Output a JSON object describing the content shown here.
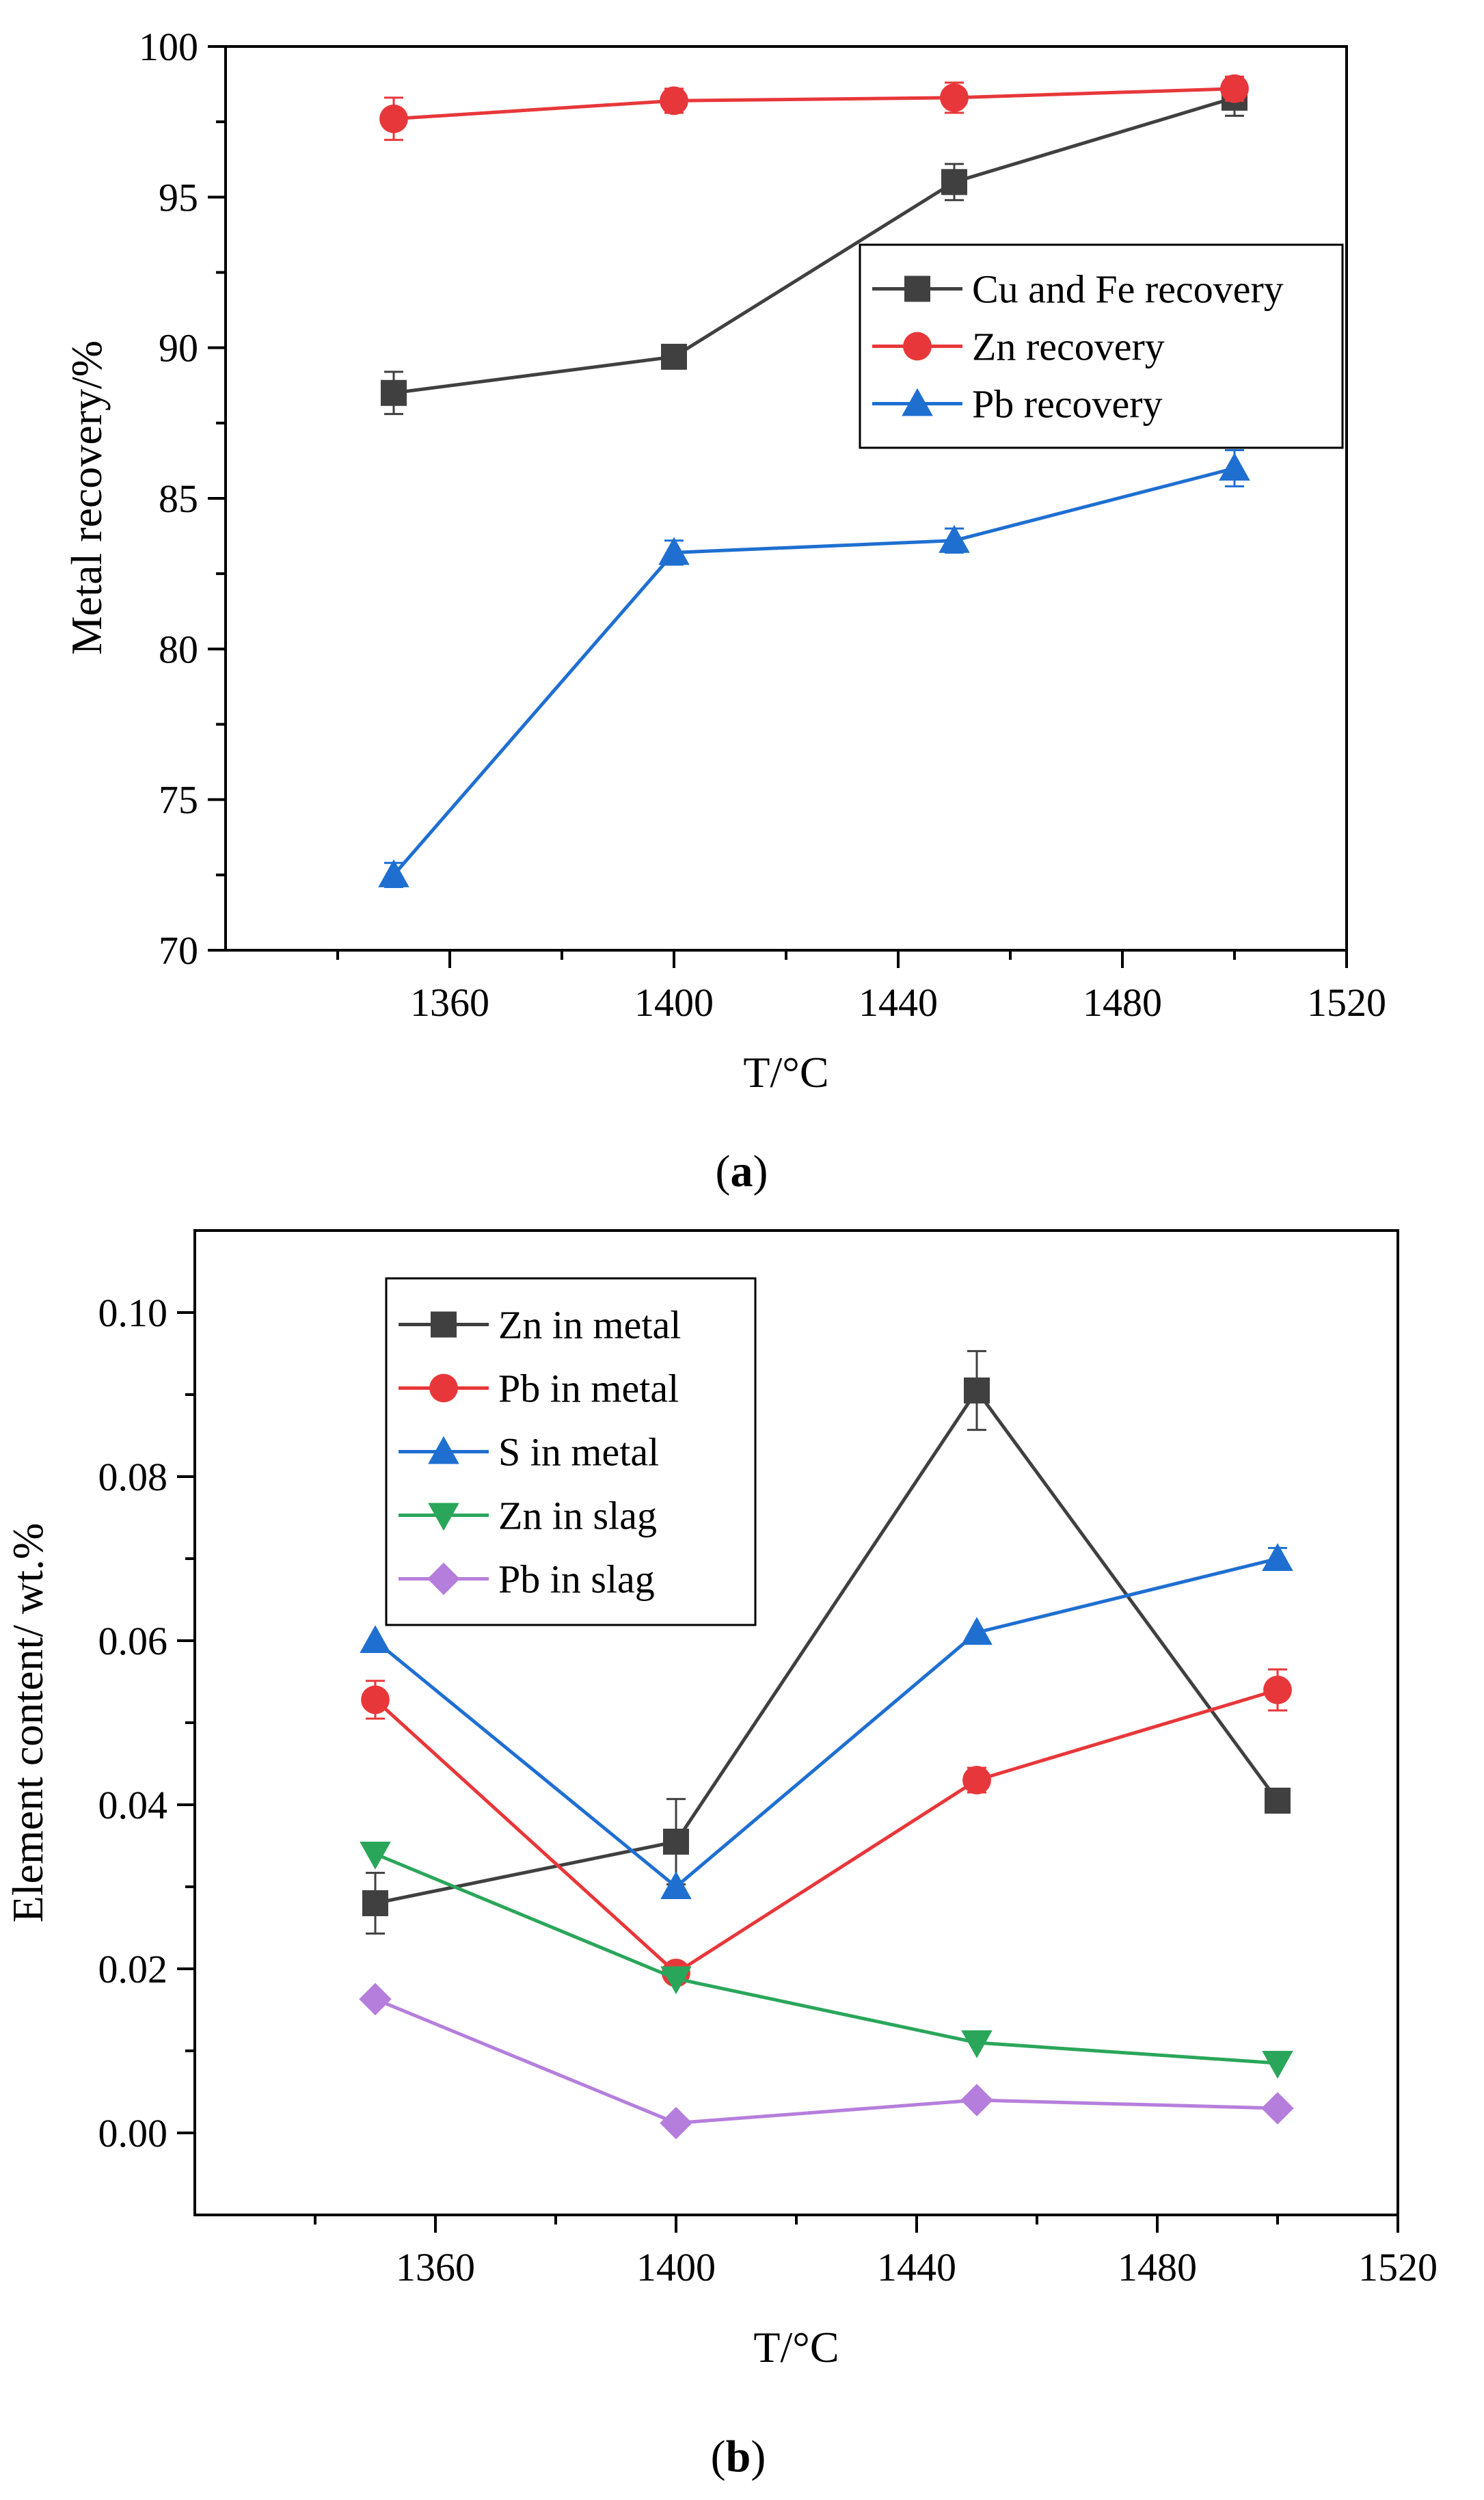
{
  "captions": {
    "a": "a",
    "b": "b"
  },
  "chart_data": [
    {
      "type": "line",
      "panel": "a",
      "xlabel": "T/°C",
      "ylabel": "Metal recovery/%",
      "xlim": [
        1320,
        1520
      ],
      "ylim": [
        70,
        100
      ],
      "x_ticks": [
        1360,
        1400,
        1440,
        1480,
        1520
      ],
      "y_ticks": [
        70,
        75,
        80,
        85,
        90,
        95,
        100
      ],
      "x": [
        1350,
        1400,
        1450,
        1500
      ],
      "legend_placement": "center-right",
      "grid": false,
      "series": [
        {
          "name": "Cu and Fe recovery",
          "color": "#404040",
          "marker": "square",
          "values": [
            88.5,
            89.7,
            95.5,
            98.3
          ],
          "errors": [
            0.7,
            0.0,
            0.6,
            0.6
          ]
        },
        {
          "name": "Zn recovery",
          "color": "#e8373a",
          "marker": "circle",
          "values": [
            97.6,
            98.2,
            98.3,
            98.6
          ],
          "errors": [
            0.7,
            0.4,
            0.5,
            0.4
          ]
        },
        {
          "name": "Pb recovery",
          "color": "#1f6fd1",
          "marker": "triangle-up",
          "values": [
            72.5,
            83.2,
            83.6,
            86.0
          ],
          "errors": [
            0.4,
            0.4,
            0.4,
            0.6
          ]
        }
      ]
    },
    {
      "type": "line",
      "panel": "b",
      "xlabel": "T/°C",
      "ylabel": "Element content/ wt.%",
      "xlim": [
        1320,
        1520
      ],
      "ylim": [
        -0.01,
        0.11
      ],
      "x_ticks": [
        1360,
        1400,
        1440,
        1480,
        1520
      ],
      "y_ticks": [
        "0.00",
        "0.02",
        "0.04",
        "0.06",
        "0.08",
        "0.10"
      ],
      "x": [
        1350,
        1400,
        1450,
        1500
      ],
      "legend_placement": "top-left",
      "grid": false,
      "series": [
        {
          "name": "Zn in metal",
          "color": "#404040",
          "marker": "square",
          "values": [
            0.028,
            0.0355,
            0.0905,
            0.0405
          ],
          "errors": [
            0.0037,
            0.0052,
            0.0048,
            0.0
          ]
        },
        {
          "name": "Pb in metal",
          "color": "#e8373a",
          "marker": "circle",
          "values": [
            0.0528,
            0.0195,
            0.043,
            0.054
          ],
          "errors": [
            0.0023,
            0.0,
            0.0015,
            0.0025
          ]
        },
        {
          "name": "S in metal",
          "color": "#1f6fd1",
          "marker": "triangle-up",
          "values": [
            0.06,
            0.03,
            0.061,
            0.07
          ],
          "errors": [
            0.0,
            0.0,
            0.0,
            0.0013
          ]
        },
        {
          "name": "Zn in slag",
          "color": "#2aa65a",
          "marker": "triangle-down",
          "values": [
            0.034,
            0.0188,
            0.011,
            0.0085
          ],
          "errors": [
            0.0,
            0.0,
            0.0,
            0.0
          ]
        },
        {
          "name": "Pb in slag",
          "color": "#b57edc",
          "marker": "diamond",
          "values": [
            0.0163,
            0.0012,
            0.004,
            0.003
          ],
          "errors": [
            0.0,
            0.0,
            0.0,
            0.0
          ]
        }
      ]
    }
  ]
}
